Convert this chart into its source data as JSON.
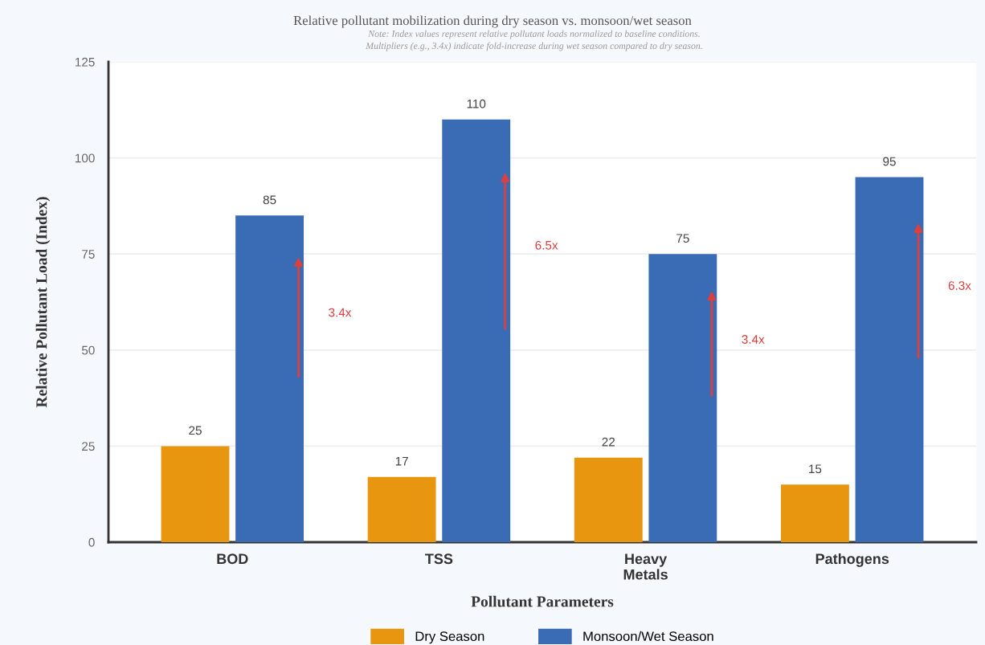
{
  "chart_data": {
    "type": "bar",
    "subtitle": "Relative pollutant mobilization during dry season vs. monsoon/wet season",
    "annotations": [
      "Note: Index values represent relative pollutant loads normalized to baseline conditions.",
      "Multipliers (e.g., 3.4x) indicate fold-increase during wet season compared to dry season.",
      "3.4x",
      "6.5x",
      "3.4x",
      "6.3x"
    ],
    "xlabel": "Pollutant Parameters",
    "ylabel": "Relative Pollutant Load (Index)",
    "categories": [
      "BOD",
      "TSS",
      "Heavy\nMetals",
      "Pathogens"
    ],
    "series": [
      {
        "name": "Dry Season",
        "color": "#e8960f",
        "values": [
          25,
          17,
          22,
          15
        ]
      },
      {
        "name": "Monsoon/Wet Season",
        "color": "#3a6cb5",
        "values": [
          85,
          110,
          75,
          95
        ]
      }
    ],
    "ylim": [
      0,
      125
    ],
    "yticks": [
      0,
      25,
      50,
      75,
      100,
      125
    ],
    "grid": "y",
    "legend": "bottom",
    "data_labels": true
  }
}
